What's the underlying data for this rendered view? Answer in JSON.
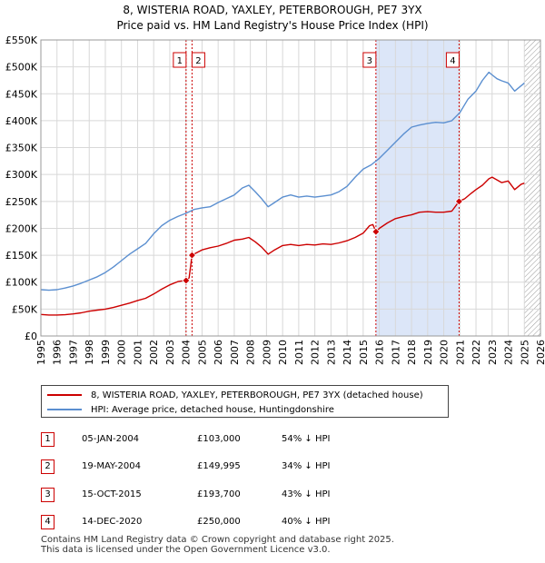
{
  "title_line1": "8, WISTERIA ROAD, YAXLEY, PETERBOROUGH, PE7 3YX",
  "title_line2": "Price paid vs. HM Land Registry's House Price Index (HPI)",
  "colors": {
    "property": "#cc0000",
    "hpi": "#5b8fd0",
    "shade": "#dce6f8",
    "grid": "#d8d8d8"
  },
  "legend": {
    "property_label": "8, WISTERIA ROAD, YAXLEY, PETERBOROUGH, PE7 3YX (detached house)",
    "hpi_label": "HPI: Average price, detached house, Huntingdonshire"
  },
  "transactions": [
    {
      "num": "1",
      "date": "05-JAN-2004",
      "price": "£103,000",
      "hpi_diff": "54% ↓ HPI"
    },
    {
      "num": "2",
      "date": "19-MAY-2004",
      "price": "£149,995",
      "hpi_diff": "34% ↓ HPI"
    },
    {
      "num": "3",
      "date": "15-OCT-2015",
      "price": "£193,700",
      "hpi_diff": "43% ↓ HPI"
    },
    {
      "num": "4",
      "date": "14-DEC-2020",
      "price": "£250,000",
      "hpi_diff": "40% ↓ HPI"
    }
  ],
  "footer_line1": "Contains HM Land Registry data © Crown copyright and database right 2025.",
  "footer_line2": "This data is licensed under the Open Government Licence v3.0.",
  "chart_data": {
    "type": "line",
    "title": "8, WISTERIA ROAD, YAXLEY, PETERBOROUGH, PE7 3YX — Price paid vs. HM Land Registry's House Price Index (HPI)",
    "xlabel": "",
    "ylabel": "",
    "xlim": [
      1995,
      2026
    ],
    "ylim": [
      0,
      550000
    ],
    "x_ticks": [
      1995,
      1996,
      1997,
      1998,
      1999,
      2000,
      2001,
      2002,
      2003,
      2004,
      2005,
      2006,
      2007,
      2008,
      2009,
      2010,
      2011,
      2012,
      2013,
      2014,
      2015,
      2016,
      2017,
      2018,
      2019,
      2020,
      2021,
      2022,
      2023,
      2024,
      2025,
      2026
    ],
    "y_ticks": [
      0,
      50000,
      100000,
      150000,
      200000,
      250000,
      300000,
      350000,
      400000,
      450000,
      500000,
      550000
    ],
    "y_tick_labels": [
      "£0",
      "£50K",
      "£100K",
      "£150K",
      "£200K",
      "£250K",
      "£300K",
      "£350K",
      "£400K",
      "£450K",
      "£500K",
      "£550K"
    ],
    "grid": true,
    "legend_position": "below",
    "shaded_region": [
      2015.79,
      2020.95
    ],
    "hatched_region_start": 2025.0,
    "series": [
      {
        "name": "8, WISTERIA ROAD, YAXLEY, PETERBOROUGH, PE7 3YX (detached house)",
        "x": [
          1995.0,
          1995.5,
          1996.0,
          1996.5,
          1997.0,
          1997.5,
          1998.0,
          1998.5,
          1999.0,
          1999.5,
          2000.0,
          2000.5,
          2001.0,
          2001.5,
          2002.0,
          2002.5,
          2003.0,
          2003.5,
          2003.9,
          2004.01,
          2004.2,
          2004.38,
          2004.5,
          2005.0,
          2005.5,
          2006.0,
          2006.5,
          2007.0,
          2007.5,
          2007.9,
          2008.3,
          2008.7,
          2009.1,
          2009.5,
          2010.0,
          2010.5,
          2011.0,
          2011.5,
          2012.0,
          2012.5,
          2013.0,
          2013.5,
          2014.0,
          2014.5,
          2015.0,
          2015.4,
          2015.6,
          2015.79,
          2016.0,
          2016.5,
          2017.0,
          2017.5,
          2018.0,
          2018.5,
          2019.0,
          2019.5,
          2020.0,
          2020.5,
          2020.95,
          2021.3,
          2021.7,
          2022.0,
          2022.4,
          2022.8,
          2023.0,
          2023.3,
          2023.6,
          2024.0,
          2024.4,
          2024.8,
          2025.0
        ],
        "y": [
          40000,
          39000,
          39000,
          39500,
          41000,
          43000,
          46000,
          48000,
          50000,
          53000,
          57000,
          61000,
          66000,
          70000,
          78000,
          87000,
          95000,
          101000,
          103000,
          103000,
          108000,
          149995,
          152000,
          160000,
          164000,
          167000,
          172000,
          178000,
          180000,
          183000,
          175000,
          165000,
          152000,
          160000,
          168000,
          170000,
          168000,
          170000,
          169000,
          171000,
          170000,
          173000,
          177000,
          183000,
          191000,
          205000,
          207000,
          193700,
          200000,
          210000,
          218000,
          222000,
          225000,
          230000,
          231000,
          230000,
          230000,
          232000,
          250000,
          255000,
          265000,
          272000,
          280000,
          292000,
          295000,
          290000,
          285000,
          288000,
          272000,
          282000,
          284000
        ]
      },
      {
        "name": "HPI: Average price, detached house, Huntingdonshire",
        "x": [
          1995.0,
          1995.5,
          1996.0,
          1996.5,
          1997.0,
          1997.5,
          1998.0,
          1998.5,
          1999.0,
          1999.5,
          2000.0,
          2000.5,
          2001.0,
          2001.5,
          2002.0,
          2002.5,
          2003.0,
          2003.5,
          2004.0,
          2004.5,
          2005.0,
          2005.5,
          2006.0,
          2006.5,
          2007.0,
          2007.5,
          2007.9,
          2008.3,
          2008.7,
          2009.1,
          2009.5,
          2010.0,
          2010.5,
          2011.0,
          2011.5,
          2012.0,
          2012.5,
          2013.0,
          2013.5,
          2014.0,
          2014.5,
          2015.0,
          2015.5,
          2016.0,
          2016.5,
          2017.0,
          2017.5,
          2018.0,
          2018.5,
          2019.0,
          2019.5,
          2020.0,
          2020.5,
          2021.0,
          2021.5,
          2022.0,
          2022.4,
          2022.8,
          2023.0,
          2023.3,
          2023.6,
          2024.0,
          2024.4,
          2024.8,
          2025.0
        ],
        "y": [
          86000,
          85000,
          86000,
          89000,
          93000,
          98000,
          104000,
          110000,
          118000,
          128000,
          140000,
          152000,
          162000,
          172000,
          190000,
          205000,
          215000,
          222000,
          228000,
          235000,
          238000,
          240000,
          248000,
          255000,
          262000,
          275000,
          280000,
          268000,
          255000,
          240000,
          248000,
          258000,
          262000,
          258000,
          260000,
          258000,
          260000,
          262000,
          268000,
          278000,
          295000,
          310000,
          318000,
          330000,
          345000,
          360000,
          375000,
          388000,
          392000,
          395000,
          397000,
          396000,
          400000,
          415000,
          440000,
          455000,
          475000,
          490000,
          485000,
          478000,
          474000,
          470000,
          455000,
          465000,
          470000
        ]
      }
    ],
    "markers": [
      {
        "label": "1",
        "x": 2004.01,
        "y": 103000
      },
      {
        "label": "2",
        "x": 2004.38,
        "y": 149995
      },
      {
        "label": "3",
        "x": 2015.79,
        "y": 193700
      },
      {
        "label": "4",
        "x": 2020.95,
        "y": 250000
      }
    ]
  }
}
